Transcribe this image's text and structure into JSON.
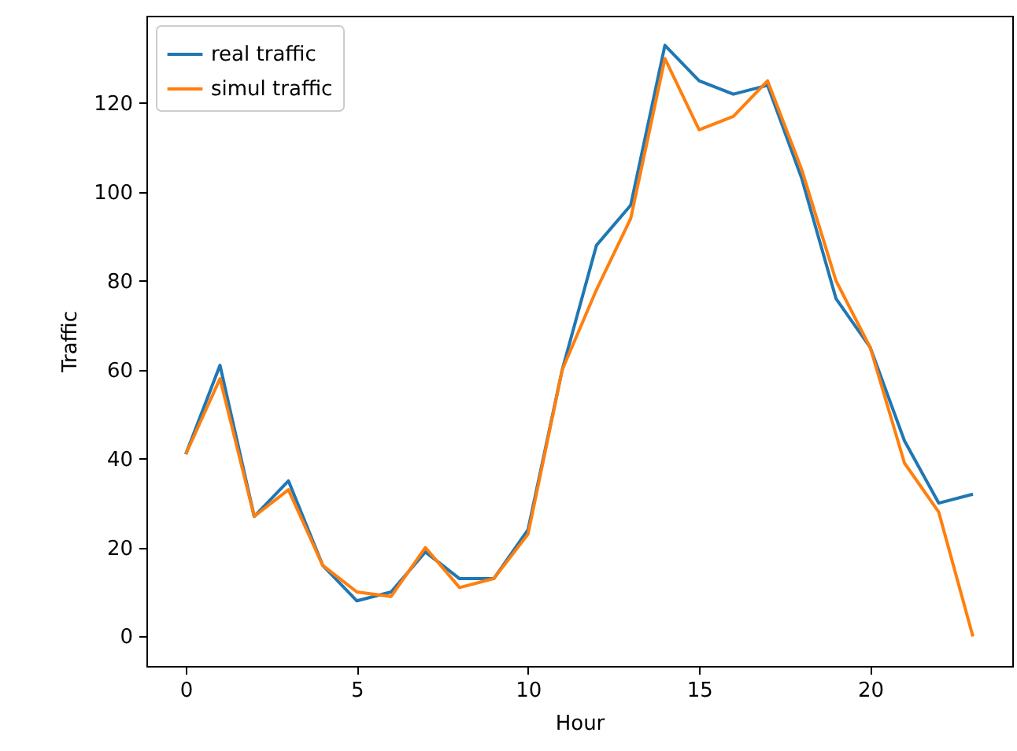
{
  "chart_data": {
    "type": "line",
    "xlabel": "Hour",
    "ylabel": "Traffic",
    "x": [
      0,
      1,
      2,
      3,
      4,
      5,
      6,
      7,
      8,
      9,
      10,
      11,
      12,
      13,
      14,
      15,
      16,
      17,
      18,
      19,
      20,
      21,
      22,
      23
    ],
    "series": [
      {
        "name": "real traffic",
        "color": "#1f77b4",
        "values": [
          41,
          61,
          27,
          35,
          16,
          8,
          10,
          19,
          13,
          13,
          24,
          60,
          88,
          97,
          133,
          125,
          122,
          124,
          103,
          76,
          65,
          44,
          30,
          32
        ]
      },
      {
        "name": "simul traffic",
        "color": "#ff7f0e",
        "values": [
          41,
          58,
          27,
          33,
          16,
          10,
          9,
          20,
          11,
          13,
          23,
          60,
          78,
          94,
          130,
          114,
          117,
          125,
          105,
          80,
          65,
          39,
          28,
          0
        ]
      }
    ],
    "xlim": [
      -1.15,
      24.15
    ],
    "ylim": [
      -6.65,
      139.65
    ],
    "xticks": [
      0,
      5,
      10,
      15,
      20
    ],
    "yticks": [
      0,
      20,
      40,
      60,
      80,
      100,
      120
    ],
    "grid": false,
    "legend": "top left",
    "marker": "none",
    "line_style": "solid"
  }
}
